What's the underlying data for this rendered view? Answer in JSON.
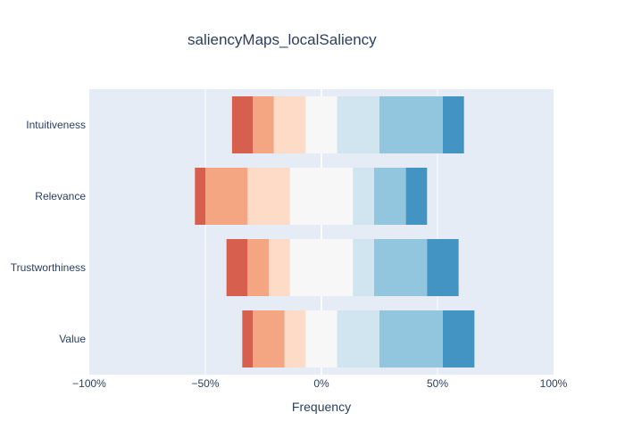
{
  "chart_data": {
    "type": "bar",
    "orientation": "horizontal",
    "stacked": "diverging",
    "title": "saliencyMaps_localSaliency",
    "xlabel": "Frequency",
    "ylabel": "",
    "xlim": [
      -100,
      100
    ],
    "xticks": [
      -100,
      -50,
      0,
      50,
      100
    ],
    "xtick_labels": [
      "−100%",
      "−50%",
      "0%",
      "50%",
      "100%"
    ],
    "categories": [
      "Intuitiveness",
      "Relevance",
      "Trustworthiness",
      "Value"
    ],
    "grid": true,
    "legend": "none",
    "colors": [
      "#d6604d",
      "#f4a582",
      "#fddbc7",
      "#f7f7f7",
      "#d1e5f0",
      "#92c5de",
      "#4393c3"
    ],
    "segments": [
      [
        {
          "start": -38.5,
          "end": -29.5
        },
        {
          "start": -29.5,
          "end": -20.5
        },
        {
          "start": -20.5,
          "end": -6.8
        },
        {
          "start": -6.8,
          "end": 6.8
        },
        {
          "start": 6.8,
          "end": 25
        },
        {
          "start": 25,
          "end": 52.3
        },
        {
          "start": 52.3,
          "end": 61.4
        }
      ],
      [
        {
          "start": -54.5,
          "end": -50
        },
        {
          "start": -50,
          "end": -31.8
        },
        {
          "start": -31.8,
          "end": -13.6
        },
        {
          "start": -13.6,
          "end": 13.6
        },
        {
          "start": 13.6,
          "end": 22.7
        },
        {
          "start": 22.7,
          "end": 36.4
        },
        {
          "start": 36.4,
          "end": 45.5
        }
      ],
      [
        {
          "start": -40.9,
          "end": -31.8
        },
        {
          "start": -31.8,
          "end": -22.7
        },
        {
          "start": -22.7,
          "end": -13.6
        },
        {
          "start": -13.6,
          "end": 13.6
        },
        {
          "start": 13.6,
          "end": 22.7
        },
        {
          "start": 22.7,
          "end": 45.5
        },
        {
          "start": 45.5,
          "end": 59.1
        }
      ],
      [
        {
          "start": -34.1,
          "end": -29.5
        },
        {
          "start": -29.5,
          "end": -15.9
        },
        {
          "start": -15.9,
          "end": -6.8
        },
        {
          "start": -6.8,
          "end": 6.8
        },
        {
          "start": 6.8,
          "end": 25
        },
        {
          "start": 25,
          "end": 52.3
        },
        {
          "start": 52.3,
          "end": 65.9
        }
      ]
    ]
  }
}
